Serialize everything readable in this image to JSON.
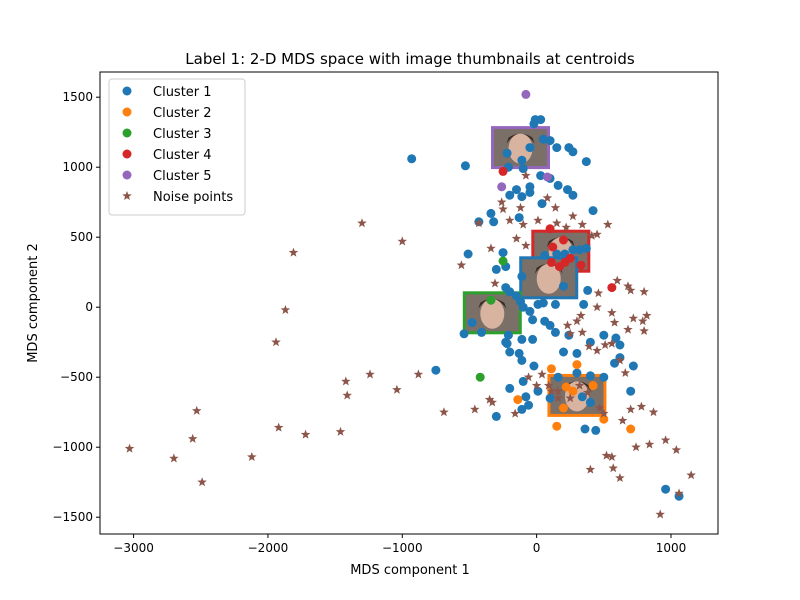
{
  "chart_data": {
    "type": "scatter",
    "title": "Label 1: 2-D MDS space with image thumbnails at centroids",
    "xlabel": "MDS component 1",
    "ylabel": "MDS component 2",
    "xlim": [
      -3250,
      1350
    ],
    "ylim": [
      -1620,
      1680
    ],
    "xticks": [
      -3000,
      -2000,
      -1000,
      0,
      1000
    ],
    "yticks": [
      -1500,
      -1000,
      -500,
      0,
      500,
      1000,
      1500
    ],
    "grid": false,
    "legend": {
      "placement": "top-left"
    },
    "series": [
      {
        "name": "Cluster 1",
        "marker": "circle",
        "color": "#1f77b4",
        "points": [
          [
            -930,
            1060
          ],
          [
            -530,
            1010
          ],
          [
            -110,
            1050
          ],
          [
            -220,
            1100
          ],
          [
            -50,
            1140
          ],
          [
            -20,
            1310
          ],
          [
            -10,
            1340
          ],
          [
            30,
            1340
          ],
          [
            50,
            1200
          ],
          [
            100,
            1190
          ],
          [
            150,
            1140
          ],
          [
            240,
            1140
          ],
          [
            270,
            1110
          ],
          [
            370,
            1040
          ],
          [
            -210,
            1000
          ],
          [
            -100,
            990
          ],
          [
            30,
            940
          ],
          [
            100,
            920
          ],
          [
            -150,
            840
          ],
          [
            -200,
            800
          ],
          [
            -110,
            790
          ],
          [
            -50,
            820
          ],
          [
            -50,
            860
          ],
          [
            160,
            870
          ],
          [
            230,
            840
          ],
          [
            270,
            800
          ],
          [
            40,
            740
          ],
          [
            -340,
            670
          ],
          [
            -130,
            640
          ],
          [
            -320,
            610
          ],
          [
            -430,
            610
          ],
          [
            420,
            690
          ],
          [
            -510,
            380
          ],
          [
            60,
            370
          ],
          [
            150,
            380
          ],
          [
            210,
            380
          ],
          [
            270,
            410
          ],
          [
            320,
            410
          ],
          [
            370,
            420
          ],
          [
            -250,
            390
          ],
          [
            -230,
            290
          ],
          [
            -300,
            270
          ],
          [
            -110,
            220
          ],
          [
            -230,
            140
          ],
          [
            -200,
            110
          ],
          [
            -150,
            80
          ],
          [
            -120,
            40
          ],
          [
            10,
            20
          ],
          [
            50,
            30
          ],
          [
            -100,
            0
          ],
          [
            140,
            20
          ],
          [
            -50,
            -30
          ],
          [
            -30,
            -90
          ],
          [
            60,
            -100
          ],
          [
            100,
            -130
          ],
          [
            -210,
            -200
          ],
          [
            -230,
            -250
          ],
          [
            -30,
            -230
          ],
          [
            140,
            -180
          ],
          [
            240,
            -200
          ],
          [
            -110,
            -230
          ],
          [
            -540,
            -190
          ],
          [
            -480,
            -110
          ],
          [
            -410,
            -180
          ],
          [
            -220,
            -260
          ],
          [
            -200,
            -320
          ],
          [
            -130,
            -330
          ],
          [
            -110,
            -380
          ],
          [
            -20,
            -420
          ],
          [
            200,
            -320
          ],
          [
            300,
            -330
          ],
          [
            400,
            -250
          ],
          [
            500,
            -200
          ],
          [
            590,
            -220
          ],
          [
            620,
            -270
          ],
          [
            720,
            -420
          ],
          [
            580,
            -400
          ],
          [
            620,
            -360
          ],
          [
            -750,
            -450
          ],
          [
            -100,
            -530
          ],
          [
            -200,
            -580
          ],
          [
            -80,
            -640
          ],
          [
            -60,
            -700
          ],
          [
            -110,
            -730
          ],
          [
            -300,
            -780
          ],
          [
            300,
            -470
          ],
          [
            400,
            -490
          ],
          [
            500,
            -500
          ],
          [
            700,
            -600
          ],
          [
            400,
            -680
          ],
          [
            100,
            -650
          ],
          [
            160,
            -500
          ],
          [
            10,
            -600
          ],
          [
            340,
            -640
          ],
          [
            360,
            -870
          ],
          [
            440,
            -880
          ],
          [
            960,
            -1300
          ],
          [
            1060,
            -1350
          ],
          [
            380,
            120
          ],
          [
            350,
            20
          ],
          [
            200,
            150
          ]
        ]
      },
      {
        "name": "Cluster 2",
        "marker": "circle",
        "color": "#ff7f0e",
        "points": [
          [
            -140,
            -660
          ],
          [
            110,
            -440
          ],
          [
            220,
            -570
          ],
          [
            300,
            -410
          ],
          [
            270,
            -600
          ],
          [
            200,
            -720
          ],
          [
            420,
            -560
          ],
          [
            500,
            -800
          ],
          [
            150,
            -850
          ],
          [
            700,
            -870
          ]
        ]
      },
      {
        "name": "Cluster 3",
        "marker": "circle",
        "color": "#2ca02c",
        "points": [
          [
            -250,
            330
          ],
          [
            -420,
            -500
          ],
          [
            -340,
            50
          ]
        ]
      },
      {
        "name": "Cluster 4",
        "marker": "circle",
        "color": "#d62728",
        "points": [
          [
            -250,
            970
          ],
          [
            100,
            560
          ],
          [
            120,
            430
          ],
          [
            200,
            480
          ],
          [
            250,
            350
          ],
          [
            330,
            300
          ],
          [
            110,
            320
          ],
          [
            560,
            140
          ],
          [
            170,
            290
          ],
          [
            210,
            320
          ]
        ]
      },
      {
        "name": "Cluster 5",
        "marker": "circle",
        "color": "#9467bd",
        "points": [
          [
            -80,
            1520
          ],
          [
            -260,
            860
          ],
          [
            80,
            930
          ]
        ]
      },
      {
        "name": "Noise points",
        "marker": "star",
        "color": "#8c564b",
        "points": [
          [
            -3030,
            -1010
          ],
          [
            -2700,
            -1080
          ],
          [
            -2560,
            -940
          ],
          [
            -2530,
            -740
          ],
          [
            -2490,
            -1250
          ],
          [
            -2120,
            -1070
          ],
          [
            -1920,
            -860
          ],
          [
            -1940,
            -250
          ],
          [
            -1870,
            -20
          ],
          [
            -1810,
            390
          ],
          [
            -1720,
            -910
          ],
          [
            -1460,
            -890
          ],
          [
            -1420,
            -530
          ],
          [
            -1410,
            -630
          ],
          [
            -1300,
            600
          ],
          [
            -1240,
            -480
          ],
          [
            -1040,
            -590
          ],
          [
            -1000,
            470
          ],
          [
            -880,
            -480
          ],
          [
            -690,
            -750
          ],
          [
            -560,
            300
          ],
          [
            -460,
            -730
          ],
          [
            -430,
            600
          ],
          [
            -340,
            420
          ],
          [
            -310,
            170
          ],
          [
            -260,
            750
          ],
          [
            -250,
            700
          ],
          [
            -200,
            620
          ],
          [
            -150,
            490
          ],
          [
            -80,
            440
          ],
          [
            -100,
            590
          ],
          [
            -120,
            710
          ],
          [
            -80,
            940
          ],
          [
            10,
            620
          ],
          [
            80,
            780
          ],
          [
            140,
            710
          ],
          [
            150,
            600
          ],
          [
            220,
            570
          ],
          [
            270,
            650
          ],
          [
            340,
            590
          ],
          [
            410,
            510
          ],
          [
            450,
            520
          ],
          [
            530,
            590
          ],
          [
            600,
            190
          ],
          [
            680,
            150
          ],
          [
            700,
            120
          ],
          [
            800,
            110
          ],
          [
            790,
            -100
          ],
          [
            820,
            -60
          ],
          [
            460,
            100
          ],
          [
            450,
            0
          ],
          [
            560,
            -40
          ],
          [
            580,
            -110
          ],
          [
            680,
            -160
          ],
          [
            720,
            -80
          ],
          [
            800,
            -170
          ],
          [
            330,
            -60
          ],
          [
            300,
            -100
          ],
          [
            230,
            -130
          ],
          [
            250,
            -190
          ],
          [
            340,
            -180
          ],
          [
            390,
            -280
          ],
          [
            450,
            -310
          ],
          [
            510,
            -270
          ],
          [
            560,
            -260
          ],
          [
            620,
            -380
          ],
          [
            660,
            -470
          ],
          [
            -60,
            -500
          ],
          [
            40,
            -480
          ],
          [
            90,
            -560
          ],
          [
            110,
            -600
          ],
          [
            160,
            -600
          ],
          [
            160,
            -650
          ],
          [
            250,
            -650
          ],
          [
            320,
            -560
          ],
          [
            380,
            -610
          ],
          [
            470,
            -720
          ],
          [
            500,
            -760
          ],
          [
            640,
            -810
          ],
          [
            700,
            -730
          ],
          [
            780,
            -710
          ],
          [
            870,
            -750
          ],
          [
            960,
            -950
          ],
          [
            1040,
            -1020
          ],
          [
            1060,
            -1330
          ],
          [
            1150,
            -1200
          ],
          [
            520,
            -1060
          ],
          [
            560,
            -1070
          ],
          [
            570,
            -1150
          ],
          [
            620,
            -1220
          ],
          [
            400,
            -1160
          ],
          [
            -350,
            -660
          ],
          [
            -330,
            -680
          ],
          [
            -160,
            -760
          ],
          [
            0,
            -560
          ],
          [
            920,
            -1480
          ],
          [
            740,
            -1000
          ],
          [
            840,
            -980
          ]
        ]
      }
    ],
    "thumbnails": [
      {
        "x": -120,
        "y": 1140,
        "border": "#9467bd"
      },
      {
        "x": 180,
        "y": 400,
        "border": "#d62728"
      },
      {
        "x": 90,
        "y": 210,
        "border": "#1f77b4"
      },
      {
        "x": -330,
        "y": -40,
        "border": "#2ca02c"
      },
      {
        "x": 300,
        "y": -630,
        "border": "#ff7f0e"
      }
    ]
  }
}
